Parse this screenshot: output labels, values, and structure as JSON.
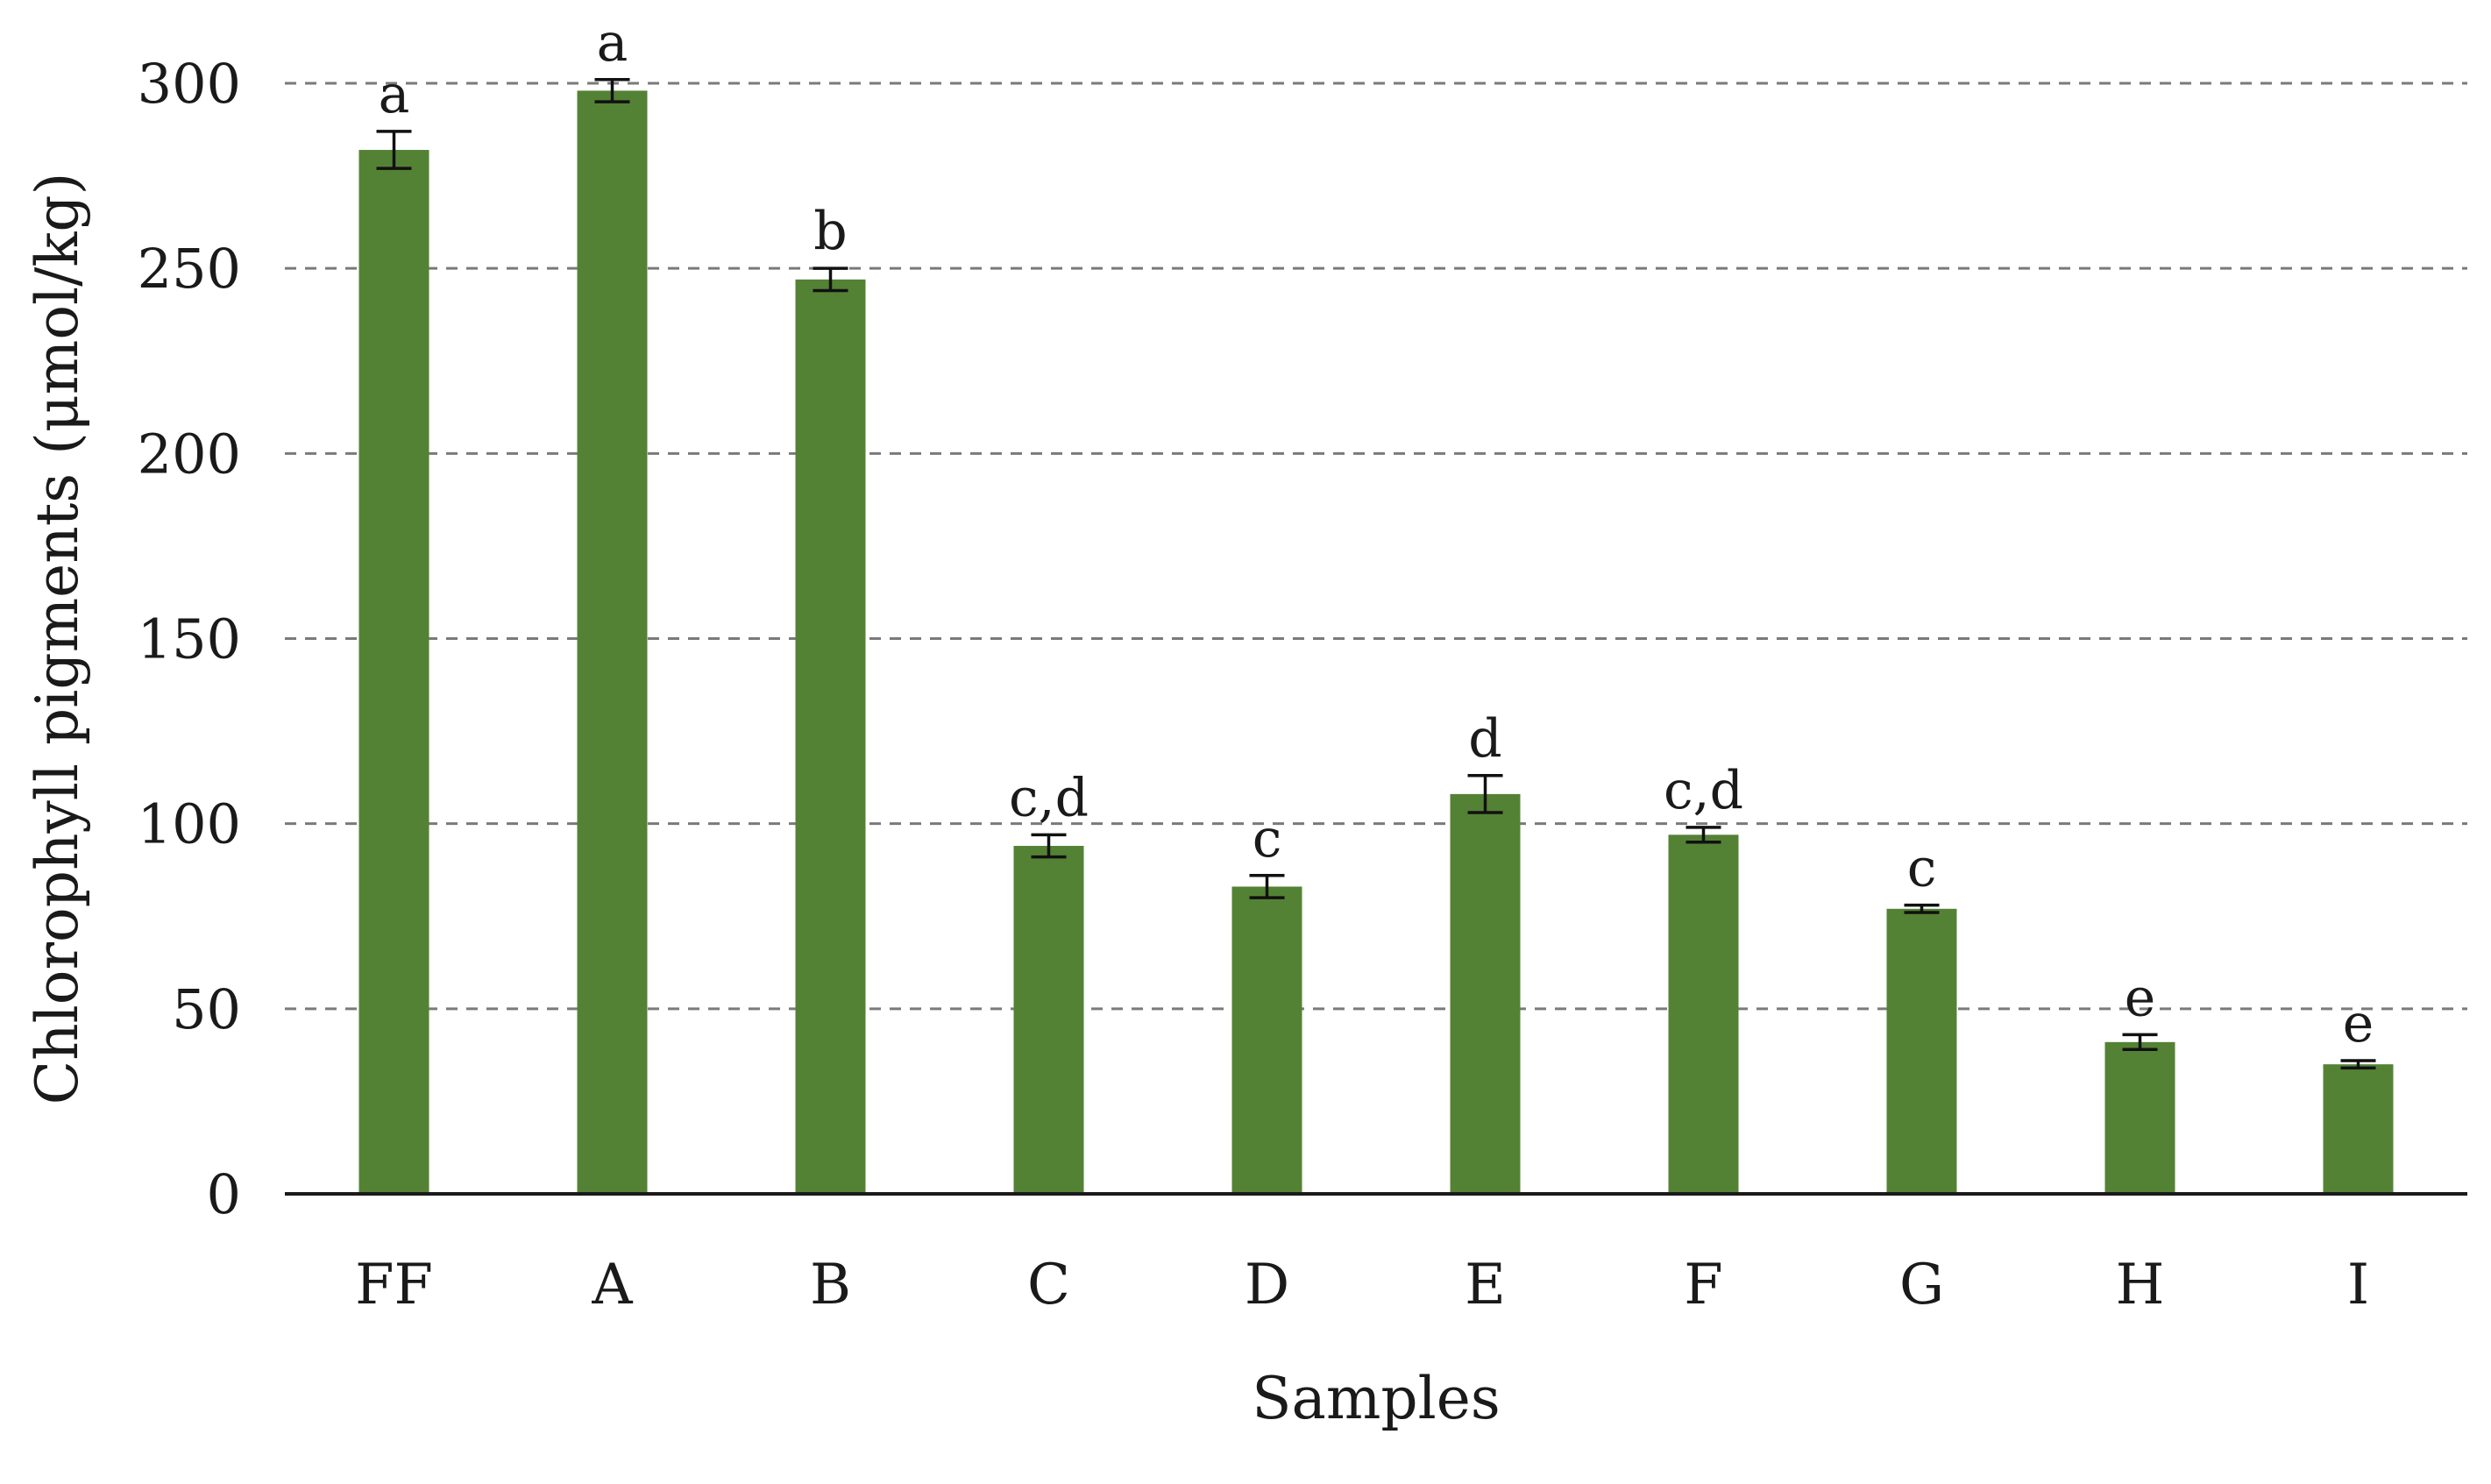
{
  "chart_data": {
    "type": "bar",
    "title": "",
    "xlabel": "Samples",
    "ylabel": "Chlorophyll  pigments (μmol/kg)",
    "categories": [
      "FF",
      "A",
      "B",
      "C",
      "D",
      "E",
      "F",
      "G",
      "H",
      "I"
    ],
    "values": [
      282,
      298,
      247,
      94,
      83,
      108,
      97,
      77,
      41,
      35
    ],
    "errors": [
      5,
      3,
      3,
      3,
      3,
      5,
      2,
      1,
      2,
      1
    ],
    "significance_labels": [
      "a",
      "a",
      "b",
      "c,d",
      "c",
      "d",
      "c,d",
      "c",
      "e",
      "e"
    ],
    "ylim": [
      0,
      300
    ],
    "yticks": [
      0,
      50,
      100,
      150,
      200,
      250,
      300
    ],
    "grid": true,
    "legend": "none",
    "colors": {
      "bar": "#548235",
      "grid": "#7a7a7a"
    }
  }
}
